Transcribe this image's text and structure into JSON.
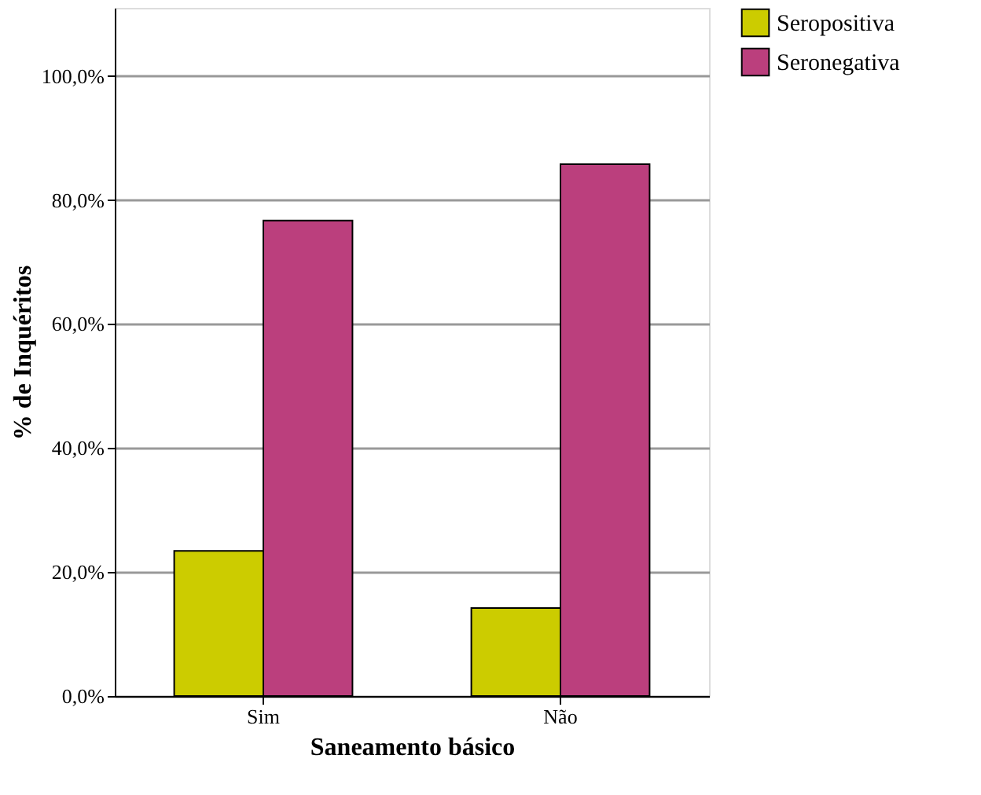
{
  "chart_data": {
    "type": "bar",
    "xlabel": "Saneamento básico",
    "ylabel": "% de Inquéritos",
    "categories": [
      "Sim",
      "Não"
    ],
    "series": [
      {
        "name": "Seropositiva",
        "color": "#cccc00",
        "values": [
          23.4,
          14.2
        ]
      },
      {
        "name": "Seronegativa",
        "color": "#bb3f7d",
        "values": [
          76.7,
          85.8
        ]
      }
    ],
    "ylim": [
      0,
      111
    ],
    "yticks": [
      {
        "value": 0,
        "label": "0,0%"
      },
      {
        "value": 20,
        "label": "20,0%"
      },
      {
        "value": 40,
        "label": "40,0%"
      },
      {
        "value": 60,
        "label": "60,0%"
      },
      {
        "value": 80,
        "label": "80,0%"
      },
      {
        "value": 100,
        "label": "100,0%"
      }
    ],
    "grid": "y",
    "legend": "right"
  }
}
